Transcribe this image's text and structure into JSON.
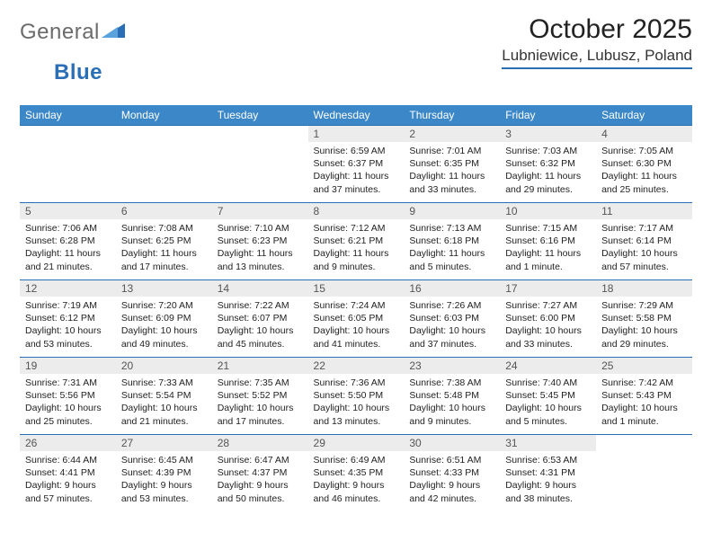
{
  "brand": {
    "part1": "General",
    "part2": "Blue"
  },
  "title": "October 2025",
  "location": "Lubniewice, Lubusz, Poland",
  "style": {
    "header_bg": "#3b87c8",
    "header_fg": "#ffffff",
    "rule_color": "#2a6fb5",
    "daynum_bg": "#ececec",
    "body_font_size": 10.5,
    "title_font_size": 30,
    "location_font_size": 17
  },
  "daysOfWeek": [
    "Sunday",
    "Monday",
    "Tuesday",
    "Wednesday",
    "Thursday",
    "Friday",
    "Saturday"
  ],
  "weeks": [
    [
      null,
      null,
      null,
      {
        "n": "1",
        "sr": "6:59 AM",
        "ss": "6:37 PM",
        "dl": "11 hours and 37 minutes."
      },
      {
        "n": "2",
        "sr": "7:01 AM",
        "ss": "6:35 PM",
        "dl": "11 hours and 33 minutes."
      },
      {
        "n": "3",
        "sr": "7:03 AM",
        "ss": "6:32 PM",
        "dl": "11 hours and 29 minutes."
      },
      {
        "n": "4",
        "sr": "7:05 AM",
        "ss": "6:30 PM",
        "dl": "11 hours and 25 minutes."
      }
    ],
    [
      {
        "n": "5",
        "sr": "7:06 AM",
        "ss": "6:28 PM",
        "dl": "11 hours and 21 minutes."
      },
      {
        "n": "6",
        "sr": "7:08 AM",
        "ss": "6:25 PM",
        "dl": "11 hours and 17 minutes."
      },
      {
        "n": "7",
        "sr": "7:10 AM",
        "ss": "6:23 PM",
        "dl": "11 hours and 13 minutes."
      },
      {
        "n": "8",
        "sr": "7:12 AM",
        "ss": "6:21 PM",
        "dl": "11 hours and 9 minutes."
      },
      {
        "n": "9",
        "sr": "7:13 AM",
        "ss": "6:18 PM",
        "dl": "11 hours and 5 minutes."
      },
      {
        "n": "10",
        "sr": "7:15 AM",
        "ss": "6:16 PM",
        "dl": "11 hours and 1 minute."
      },
      {
        "n": "11",
        "sr": "7:17 AM",
        "ss": "6:14 PM",
        "dl": "10 hours and 57 minutes."
      }
    ],
    [
      {
        "n": "12",
        "sr": "7:19 AM",
        "ss": "6:12 PM",
        "dl": "10 hours and 53 minutes."
      },
      {
        "n": "13",
        "sr": "7:20 AM",
        "ss": "6:09 PM",
        "dl": "10 hours and 49 minutes."
      },
      {
        "n": "14",
        "sr": "7:22 AM",
        "ss": "6:07 PM",
        "dl": "10 hours and 45 minutes."
      },
      {
        "n": "15",
        "sr": "7:24 AM",
        "ss": "6:05 PM",
        "dl": "10 hours and 41 minutes."
      },
      {
        "n": "16",
        "sr": "7:26 AM",
        "ss": "6:03 PM",
        "dl": "10 hours and 37 minutes."
      },
      {
        "n": "17",
        "sr": "7:27 AM",
        "ss": "6:00 PM",
        "dl": "10 hours and 33 minutes."
      },
      {
        "n": "18",
        "sr": "7:29 AM",
        "ss": "5:58 PM",
        "dl": "10 hours and 29 minutes."
      }
    ],
    [
      {
        "n": "19",
        "sr": "7:31 AM",
        "ss": "5:56 PM",
        "dl": "10 hours and 25 minutes."
      },
      {
        "n": "20",
        "sr": "7:33 AM",
        "ss": "5:54 PM",
        "dl": "10 hours and 21 minutes."
      },
      {
        "n": "21",
        "sr": "7:35 AM",
        "ss": "5:52 PM",
        "dl": "10 hours and 17 minutes."
      },
      {
        "n": "22",
        "sr": "7:36 AM",
        "ss": "5:50 PM",
        "dl": "10 hours and 13 minutes."
      },
      {
        "n": "23",
        "sr": "7:38 AM",
        "ss": "5:48 PM",
        "dl": "10 hours and 9 minutes."
      },
      {
        "n": "24",
        "sr": "7:40 AM",
        "ss": "5:45 PM",
        "dl": "10 hours and 5 minutes."
      },
      {
        "n": "25",
        "sr": "7:42 AM",
        "ss": "5:43 PM",
        "dl": "10 hours and 1 minute."
      }
    ],
    [
      {
        "n": "26",
        "sr": "6:44 AM",
        "ss": "4:41 PM",
        "dl": "9 hours and 57 minutes."
      },
      {
        "n": "27",
        "sr": "6:45 AM",
        "ss": "4:39 PM",
        "dl": "9 hours and 53 minutes."
      },
      {
        "n": "28",
        "sr": "6:47 AM",
        "ss": "4:37 PM",
        "dl": "9 hours and 50 minutes."
      },
      {
        "n": "29",
        "sr": "6:49 AM",
        "ss": "4:35 PM",
        "dl": "9 hours and 46 minutes."
      },
      {
        "n": "30",
        "sr": "6:51 AM",
        "ss": "4:33 PM",
        "dl": "9 hours and 42 minutes."
      },
      {
        "n": "31",
        "sr": "6:53 AM",
        "ss": "4:31 PM",
        "dl": "9 hours and 38 minutes."
      },
      null
    ]
  ]
}
